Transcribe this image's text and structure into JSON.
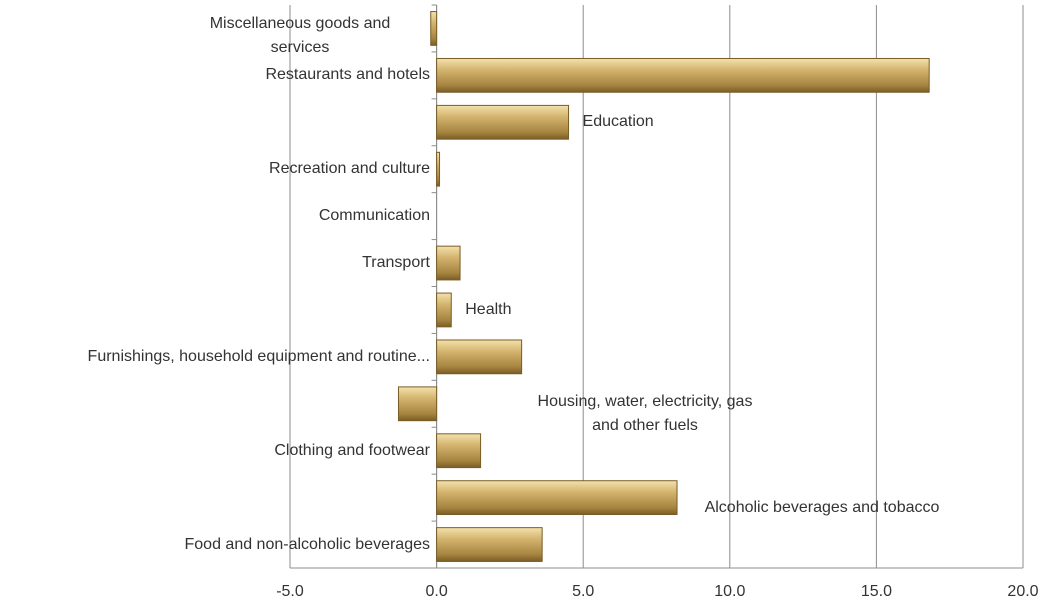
{
  "chart_data": {
    "type": "barh",
    "categories": [
      "Food and non-alcoholic beverages",
      "Alcoholic beverages and tobacco",
      "Clothing and footwear",
      "Housing, water, electricity, gas and other fuels",
      "Furnishings, household equipment and routine...",
      "Health",
      "Transport",
      "Communication",
      "Recreation and culture",
      "Education",
      "Restaurants and hotels",
      "Miscellaneous goods and services"
    ],
    "values": [
      3.6,
      8.2,
      1.5,
      -1.3,
      2.9,
      0.5,
      0.8,
      0.0,
      0.1,
      4.5,
      16.8,
      -0.2
    ],
    "color": "#c2a35a",
    "xlim": [
      -5,
      20
    ],
    "xticks": [
      {
        "value": -5,
        "label": "-5.0"
      },
      {
        "value": 0,
        "label": "0.0"
      },
      {
        "value": 5,
        "label": "5.0"
      },
      {
        "value": 10,
        "label": "10.0"
      },
      {
        "value": 15,
        "label": "15.0"
      },
      {
        "value": 20,
        "label": "20.0"
      }
    ],
    "grid": true
  }
}
